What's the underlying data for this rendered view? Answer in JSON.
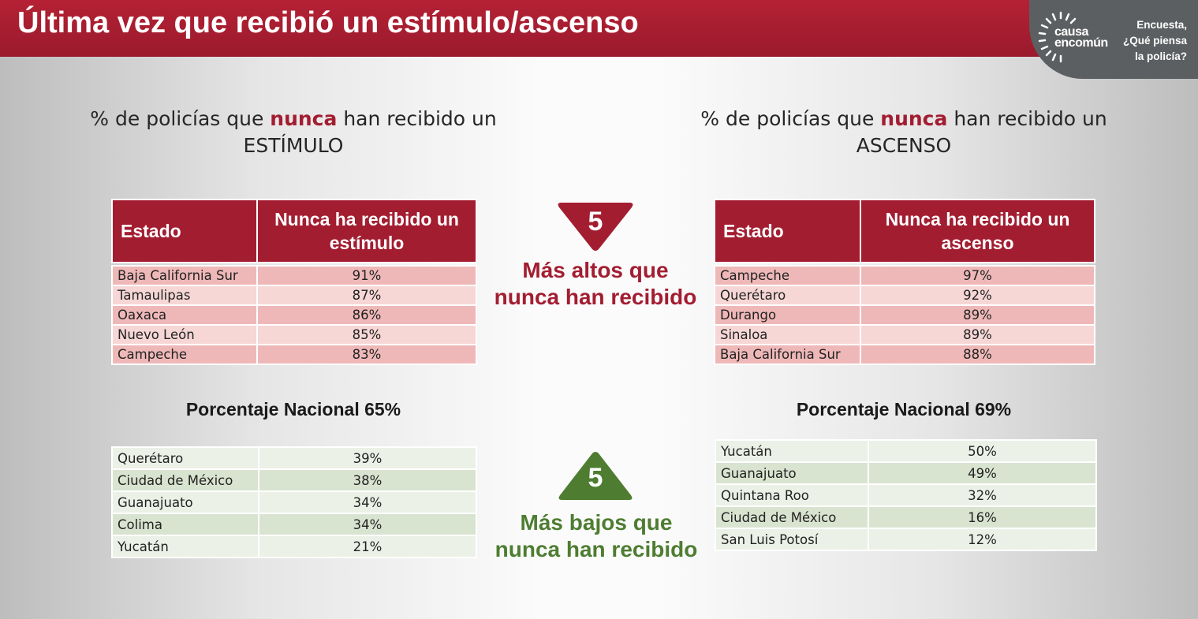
{
  "header": {
    "title": "Última vez que recibió un estímulo/ascenso",
    "brand": {
      "word1": "causa",
      "word2": "encomún",
      "tagline": "Encuesta, ¿Qué piensa la policía?"
    }
  },
  "colors": {
    "primary_red": "#a31d31",
    "green": "#4e7d31",
    "brand_gray": "#5c5f61"
  },
  "left_panel": {
    "subtitle": {
      "pre": "% de policías que ",
      "highlight": "nunca",
      "post": " han recibido un ESTÍMULO"
    },
    "headers": {
      "state": "Estado",
      "value": "Nunca ha recibido un estímulo"
    },
    "top_rows": [
      {
        "state": "Baja California Sur",
        "value": "91%"
      },
      {
        "state": "Tamaulipas",
        "value": "87%"
      },
      {
        "state": "Oaxaca",
        "value": "86%"
      },
      {
        "state": "Nuevo León",
        "value": "85%"
      },
      {
        "state": "Campeche",
        "value": "83%"
      }
    ],
    "national": "Porcentaje Nacional 65%",
    "bottom_rows": [
      {
        "state": "Querétaro",
        "value": "39%"
      },
      {
        "state": "Ciudad de México",
        "value": "38%"
      },
      {
        "state": "Guanajuato",
        "value": "34%"
      },
      {
        "state": "Colima",
        "value": "34%"
      },
      {
        "state": "Yucatán",
        "value": "21%"
      }
    ]
  },
  "right_panel": {
    "subtitle": {
      "pre": "% de policías que ",
      "highlight": "nunca",
      "post": " han recibido un ASCENSO"
    },
    "headers": {
      "state": "Estado",
      "value": "Nunca ha recibido un ascenso"
    },
    "top_rows": [
      {
        "state": "Campeche",
        "value": "97%"
      },
      {
        "state": "Querétaro",
        "value": "92%"
      },
      {
        "state": "Durango",
        "value": "89%"
      },
      {
        "state": "Sinaloa",
        "value": "89%"
      },
      {
        "state": "Baja California Sur",
        "value": "88%"
      }
    ],
    "national": "Porcentaje Nacional 69%",
    "bottom_rows": [
      {
        "state": "Yucatán",
        "value": "50%"
      },
      {
        "state": "Guanajuato",
        "value": "49%"
      },
      {
        "state": "Quintana Roo",
        "value": "32%"
      },
      {
        "state": "Ciudad de México",
        "value": "16%"
      },
      {
        "state": "San Luis Potosí",
        "value": "12%"
      }
    ]
  },
  "center": {
    "high": {
      "number": "5",
      "caption": "Más altos que nunca han recibido"
    },
    "low": {
      "number": "5",
      "caption": "Más bajos que nunca han recibido"
    }
  }
}
